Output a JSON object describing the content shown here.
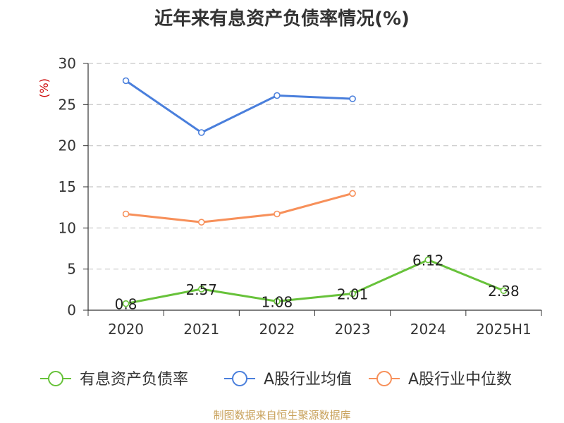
{
  "title": "近年来有息资产负债率情况(%)",
  "source": "制图数据来自恒生聚源数据库",
  "chart_data": {
    "type": "line",
    "title": "近年来有息资产负债率情况(%)",
    "ylabel": "(%)",
    "xlabel": "",
    "categories": [
      "2020",
      "2021",
      "2022",
      "2023",
      "2024",
      "2025H1"
    ],
    "ylim": [
      0,
      30
    ],
    "yticks": [
      0,
      5,
      10,
      15,
      20,
      25,
      30
    ],
    "grid": "horizontal dashed",
    "legend_position": "bottom",
    "series": [
      {
        "name": "有息资产负债率",
        "color": "#67c23a",
        "values": [
          0.8,
          2.57,
          1.08,
          2.01,
          6.12,
          2.38
        ],
        "labels": [
          "0.8",
          "2.57",
          "1.08",
          "2.01",
          "6.12",
          "2.38"
        ],
        "show_labels": true
      },
      {
        "name": "A股行业均值",
        "color": "#4a7fdc",
        "values": [
          27.9,
          21.6,
          26.1,
          25.7,
          null,
          null
        ],
        "show_labels": false
      },
      {
        "name": "A股行业中位数",
        "color": "#f7905a",
        "values": [
          11.7,
          10.7,
          11.7,
          14.2,
          null,
          null
        ],
        "show_labels": false
      }
    ]
  },
  "colors": {
    "axis": "#333333",
    "grid": "#c8c8c8",
    "ylabel": "#cc0000",
    "source": "#c8a15a"
  }
}
